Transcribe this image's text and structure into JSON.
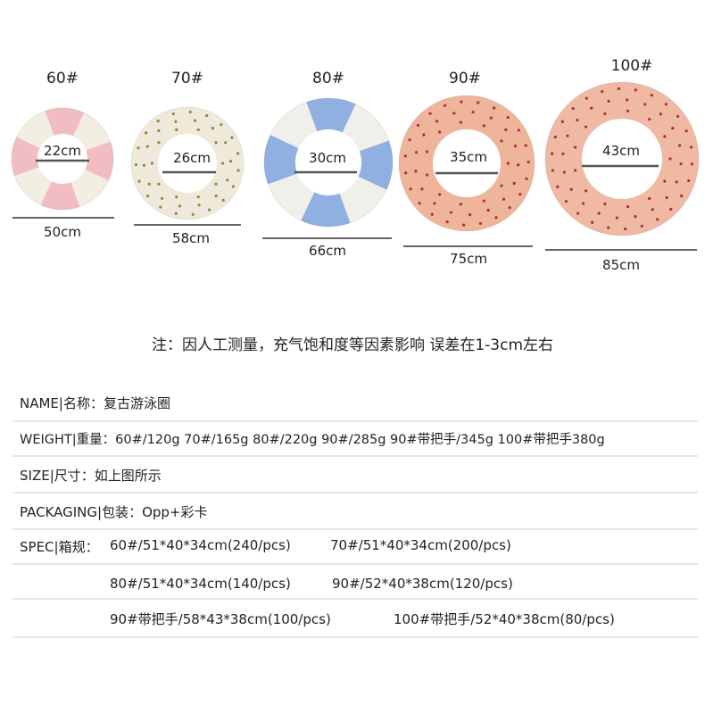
{
  "rings": [
    {
      "size": "60#",
      "inner": "22cm",
      "outer": "50cm",
      "pattern": "stripes",
      "colors": [
        "#f2bcc3",
        "#f3eee2"
      ]
    },
    {
      "size": "70#",
      "inner": "26cm",
      "outer": "58cm",
      "pattern": "dots",
      "colors": [
        "#efe9db",
        "#8a8a3a"
      ]
    },
    {
      "size": "80#",
      "inner": "30cm",
      "outer": "66cm",
      "pattern": "stripes",
      "colors": [
        "#8fb0e0",
        "#f1efea"
      ]
    },
    {
      "size": "90#",
      "inner": "35cm",
      "outer": "75cm",
      "pattern": "dots",
      "colors": [
        "#eeb59b",
        "#a8303a"
      ]
    },
    {
      "size": "100#",
      "inner": "43cm",
      "outer": "85cm",
      "pattern": "dots",
      "colors": [
        "#efb9a3",
        "#a8303a"
      ]
    }
  ],
  "note": "注：因人工测量，充气饱和度等因素影响 误差在1-3cm左右",
  "specs": {
    "name": "NAME|名称：复古游泳圈",
    "weight": "WEIGHT|重量：60#/120g 70#/165g 80#/220g 90#/285g 90#带把手/345g 100#带把手380g",
    "size": "SIZE|尺寸：如上图所示",
    "packaging": "PACKAGING|包装：Opp+彩卡",
    "spec_label": "SPEC|箱规：",
    "spec_items": [
      "60#/51*40*34cm(240/pcs)",
      "70#/51*40*34cm(200/pcs)",
      "80#/51*40*34cm(140/pcs)",
      "90#/52*40*38cm(120/pcs)",
      "90#带把手/58*43*38cm(100/pcs)",
      "100#带把手/52*40*38cm(80/pcs)"
    ]
  }
}
